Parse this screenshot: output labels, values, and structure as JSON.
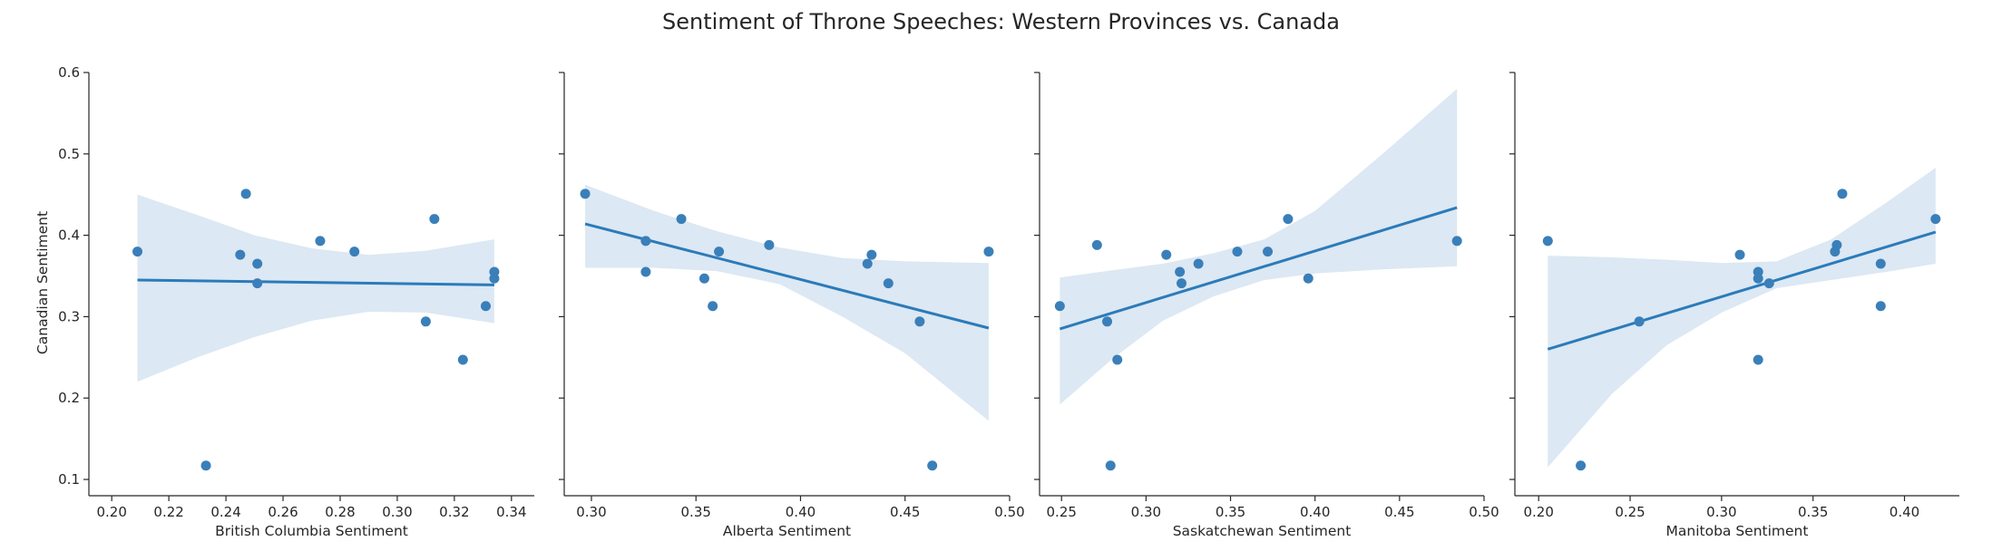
{
  "figure": {
    "title": "Sentiment of Throne Speeches: Western Provinces vs. Canada",
    "ylabel": "Canadian Sentiment"
  },
  "colors": {
    "point": "#3a7fb9",
    "line": "#2b7bba",
    "band": "#dce8f3",
    "axis": "#262626"
  },
  "chart_data": [
    {
      "type": "scatter",
      "xlabel": "British Columbia Sentiment",
      "ylabel": "Canadian Sentiment",
      "xlim": [
        0.192,
        0.348
      ],
      "ylim": [
        0.08,
        0.6
      ],
      "xticks": [
        0.2,
        0.22,
        0.24,
        0.26,
        0.28,
        0.3,
        0.32,
        0.34
      ],
      "xtick_labels": [
        "0.20",
        "0.22",
        "0.24",
        "0.26",
        "0.28",
        "0.30",
        "0.32",
        "0.34"
      ],
      "yticks": [
        0.1,
        0.2,
        0.3,
        0.4,
        0.5,
        0.6
      ],
      "ytick_labels": [
        "0.1",
        "0.2",
        "0.3",
        "0.4",
        "0.5",
        "0.6"
      ],
      "points": [
        [
          0.209,
          0.38
        ],
        [
          0.233,
          0.117
        ],
        [
          0.245,
          0.376
        ],
        [
          0.247,
          0.451
        ],
        [
          0.251,
          0.365
        ],
        [
          0.251,
          0.341
        ],
        [
          0.273,
          0.393
        ],
        [
          0.285,
          0.38
        ],
        [
          0.31,
          0.294
        ],
        [
          0.313,
          0.42
        ],
        [
          0.323,
          0.247
        ],
        [
          0.331,
          0.313
        ],
        [
          0.334,
          0.355
        ],
        [
          0.334,
          0.347
        ]
      ],
      "regression": [
        [
          0.209,
          0.345
        ],
        [
          0.334,
          0.339
        ]
      ],
      "ci_band": {
        "x": [
          0.209,
          0.23,
          0.25,
          0.27,
          0.29,
          0.31,
          0.334
        ],
        "upper": [
          0.45,
          0.425,
          0.4,
          0.384,
          0.376,
          0.381,
          0.395
        ],
        "lower": [
          0.22,
          0.25,
          0.275,
          0.295,
          0.306,
          0.305,
          0.292
        ]
      }
    },
    {
      "type": "scatter",
      "xlabel": "Alberta Sentiment",
      "ylabel": "",
      "xlim": [
        0.287,
        0.5
      ],
      "ylim": [
        0.08,
        0.6
      ],
      "xticks": [
        0.3,
        0.35,
        0.4,
        0.45,
        0.5
      ],
      "xtick_labels": [
        "0.30",
        "0.35",
        "0.40",
        "0.45",
        "0.50"
      ],
      "yticks": [
        0.1,
        0.2,
        0.3,
        0.4,
        0.5,
        0.6
      ],
      "ytick_labels": [],
      "points": [
        [
          0.297,
          0.451
        ],
        [
          0.326,
          0.393
        ],
        [
          0.326,
          0.355
        ],
        [
          0.343,
          0.42
        ],
        [
          0.354,
          0.347
        ],
        [
          0.358,
          0.313
        ],
        [
          0.361,
          0.38
        ],
        [
          0.385,
          0.388
        ],
        [
          0.432,
          0.365
        ],
        [
          0.434,
          0.376
        ],
        [
          0.442,
          0.341
        ],
        [
          0.457,
          0.294
        ],
        [
          0.463,
          0.117
        ],
        [
          0.49,
          0.38
        ]
      ],
      "regression": [
        [
          0.297,
          0.414
        ],
        [
          0.49,
          0.286
        ]
      ],
      "ci_band": {
        "x": [
          0.297,
          0.33,
          0.36,
          0.39,
          0.42,
          0.45,
          0.49
        ],
        "upper": [
          0.462,
          0.43,
          0.405,
          0.385,
          0.372,
          0.368,
          0.366
        ],
        "lower": [
          0.36,
          0.36,
          0.356,
          0.34,
          0.3,
          0.255,
          0.172
        ]
      }
    },
    {
      "type": "scatter",
      "xlabel": "Saskatchewan Sentiment",
      "ylabel": "",
      "xlim": [
        0.237,
        0.5
      ],
      "ylim": [
        0.08,
        0.6
      ],
      "xticks": [
        0.25,
        0.3,
        0.35,
        0.4,
        0.45,
        0.5
      ],
      "xtick_labels": [
        "0.25",
        "0.30",
        "0.35",
        "0.40",
        "0.45",
        "0.50"
      ],
      "yticks": [
        0.1,
        0.2,
        0.3,
        0.4,
        0.5,
        0.6
      ],
      "ytick_labels": [],
      "points": [
        [
          0.249,
          0.313
        ],
        [
          0.271,
          0.388
        ],
        [
          0.277,
          0.294
        ],
        [
          0.279,
          0.117
        ],
        [
          0.283,
          0.247
        ],
        [
          0.312,
          0.376
        ],
        [
          0.32,
          0.355
        ],
        [
          0.321,
          0.341
        ],
        [
          0.331,
          0.365
        ],
        [
          0.354,
          0.38
        ],
        [
          0.372,
          0.38
        ],
        [
          0.384,
          0.42
        ],
        [
          0.396,
          0.347
        ],
        [
          0.484,
          0.393
        ]
      ],
      "regression": [
        [
          0.249,
          0.285
        ],
        [
          0.484,
          0.434
        ]
      ],
      "ci_band": {
        "x": [
          0.249,
          0.28,
          0.31,
          0.34,
          0.37,
          0.4,
          0.44,
          0.484
        ],
        "upper": [
          0.348,
          0.357,
          0.365,
          0.378,
          0.395,
          0.43,
          0.5,
          0.58
        ],
        "lower": [
          0.192,
          0.248,
          0.295,
          0.325,
          0.345,
          0.353,
          0.358,
          0.362
        ]
      }
    },
    {
      "type": "scatter",
      "xlabel": "Manitoba Sentiment",
      "ylabel": "",
      "xlim": [
        0.187,
        0.43
      ],
      "ylim": [
        0.08,
        0.6
      ],
      "xticks": [
        0.2,
        0.25,
        0.3,
        0.35,
        0.4
      ],
      "xtick_labels": [
        "0.20",
        "0.25",
        "0.30",
        "0.35",
        "0.40"
      ],
      "yticks": [
        0.1,
        0.2,
        0.3,
        0.4,
        0.5,
        0.6
      ],
      "ytick_labels": [],
      "points": [
        [
          0.205,
          0.393
        ],
        [
          0.223,
          0.117
        ],
        [
          0.255,
          0.294
        ],
        [
          0.31,
          0.376
        ],
        [
          0.32,
          0.355
        ],
        [
          0.32,
          0.347
        ],
        [
          0.32,
          0.247
        ],
        [
          0.326,
          0.341
        ],
        [
          0.362,
          0.38
        ],
        [
          0.363,
          0.388
        ],
        [
          0.366,
          0.451
        ],
        [
          0.387,
          0.365
        ],
        [
          0.387,
          0.313
        ],
        [
          0.417,
          0.42
        ]
      ],
      "regression": [
        [
          0.205,
          0.26
        ],
        [
          0.417,
          0.404
        ]
      ],
      "ci_band": {
        "x": [
          0.205,
          0.24,
          0.27,
          0.3,
          0.33,
          0.36,
          0.39,
          0.417
        ],
        "upper": [
          0.375,
          0.373,
          0.37,
          0.366,
          0.368,
          0.395,
          0.44,
          0.483
        ],
        "lower": [
          0.115,
          0.205,
          0.265,
          0.305,
          0.335,
          0.345,
          0.355,
          0.365
        ]
      }
    }
  ]
}
